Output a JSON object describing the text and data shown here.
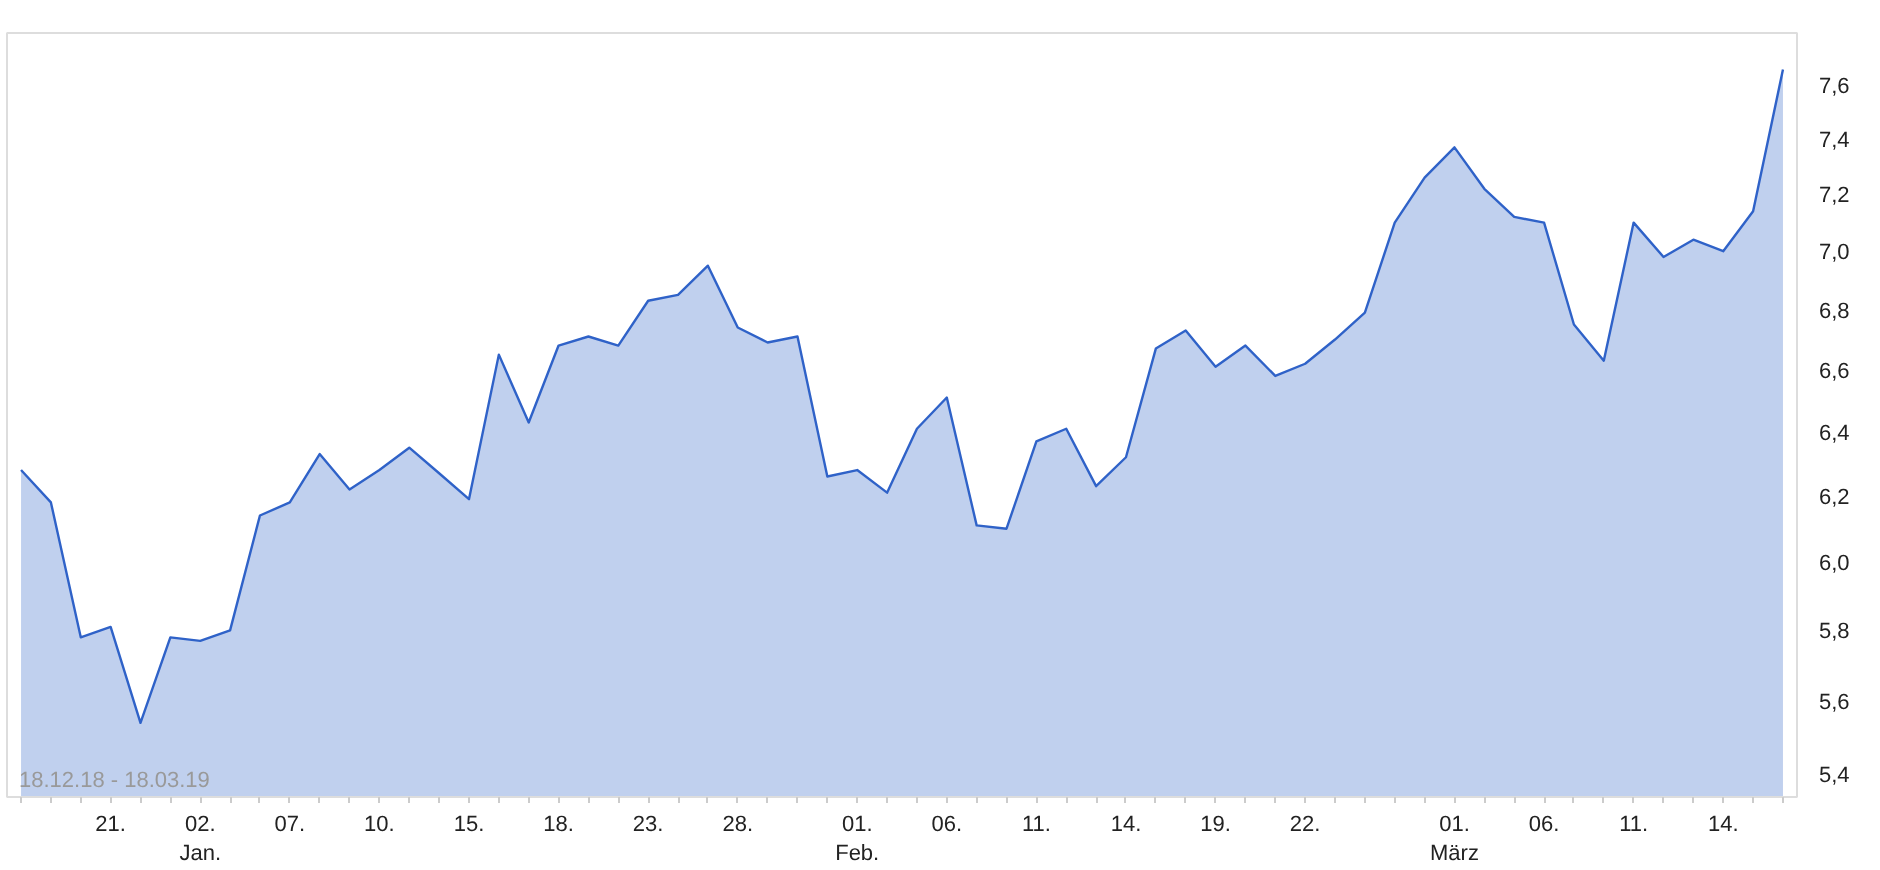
{
  "chart_data": {
    "type": "area",
    "log": true,
    "categories": [
      null,
      null,
      null,
      "21.",
      null,
      null,
      "02.\nJan.",
      null,
      null,
      "07.",
      null,
      null,
      "10.",
      null,
      null,
      "15.",
      null,
      null,
      "18.",
      null,
      null,
      "23.",
      null,
      null,
      "28.",
      null,
      null,
      null,
      "01.\nFeb.",
      null,
      null,
      "06.",
      null,
      null,
      "11.",
      null,
      null,
      "14.",
      null,
      null,
      "19.",
      null,
      null,
      "22.",
      null,
      null,
      null,
      null,
      "01.\nMärz",
      null,
      null,
      "06.",
      null,
      null,
      "11.",
      null,
      null,
      "14.",
      null,
      null
    ],
    "series": [
      {
        "color": "#2f62c8",
        "values": [
          6.28,
          6.18,
          5.78,
          5.81,
          5.54,
          5.78,
          5.77,
          5.8,
          6.14,
          6.18,
          6.33,
          6.22,
          6.28,
          6.35,
          6.27,
          6.19,
          6.65,
          6.43,
          6.68,
          6.71,
          6.68,
          6.83,
          6.85,
          6.95,
          6.74,
          6.69,
          6.71,
          6.26,
          6.28,
          6.21,
          6.41,
          6.51,
          6.11,
          6.1,
          6.37,
          6.41,
          6.23,
          6.32,
          6.67,
          6.73,
          6.61,
          6.68,
          6.58,
          6.62,
          6.7,
          6.79,
          7.1,
          7.26,
          7.37,
          7.22,
          7.12,
          7.1,
          6.75,
          6.63,
          7.1,
          6.98,
          7.04,
          7.0,
          7.14,
          7.66
        ]
      }
    ],
    "ylim": [
      5.34,
      7.8
    ],
    "yticks": [
      {
        "value": 5.4,
        "label": "5,4"
      },
      {
        "value": 5.6,
        "label": "5,6"
      },
      {
        "value": 5.8,
        "label": "5,8"
      },
      {
        "value": 6.0,
        "label": "6,0"
      },
      {
        "value": 6.2,
        "label": "6,2"
      },
      {
        "value": 6.4,
        "label": "6,4"
      },
      {
        "value": 6.6,
        "label": "6,6"
      },
      {
        "value": 6.8,
        "label": "6,8"
      },
      {
        "value": 7.0,
        "label": "7,0"
      },
      {
        "value": 7.2,
        "label": "7,2"
      },
      {
        "value": 7.4,
        "label": "7,4"
      },
      {
        "value": 7.6,
        "label": "7,6"
      }
    ],
    "annotations": [
      "18.12.18 - 18.03.19"
    ],
    "grid": false
  }
}
